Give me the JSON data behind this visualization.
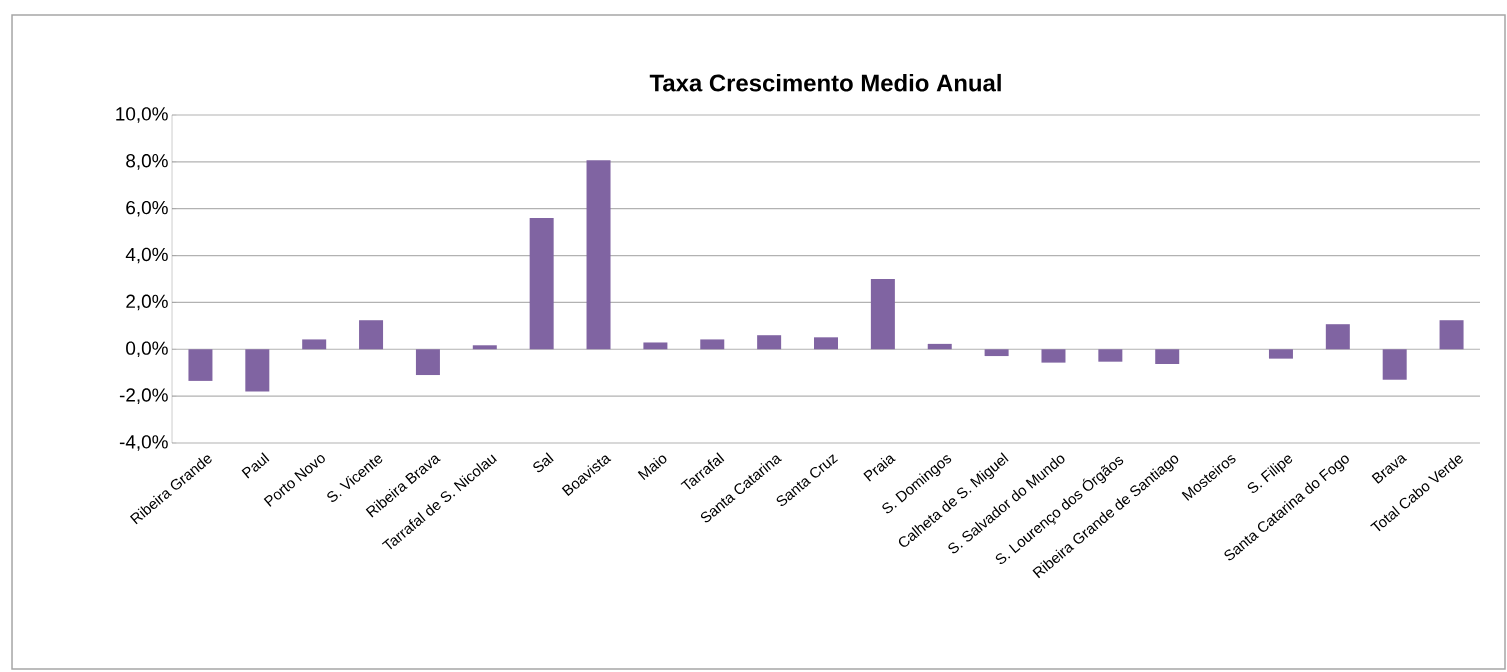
{
  "chart_data": {
    "type": "bar",
    "title": "Taxa Crescimento Medio Anual",
    "categories": [
      "Ribeira Grande",
      "Paul",
      "Porto Novo",
      "S. Vicente",
      "Ribeira Brava",
      "Tarrafal de S. Nicolau",
      "Sal",
      "Boavista",
      "Maio",
      "Tarrafal",
      "Santa Catarina",
      "Santa Cruz",
      "Praia",
      "S. Domingos",
      "Calheta de S. Miguel",
      "S. Salvador  do Mundo",
      "S. Lourenço  dos Órgãos",
      "Ribeira Grande de Santiago",
      "Mosteiros",
      "S. Filipe",
      "Santa Catarina do Fogo",
      "Brava",
      "Total Cabo Verde"
    ],
    "values": [
      -1.35,
      -1.8,
      0.42,
      1.24,
      -1.1,
      0.17,
      5.6,
      8.07,
      0.29,
      0.42,
      0.6,
      0.51,
      3.0,
      0.23,
      -0.29,
      -0.57,
      -0.53,
      -0.63,
      0,
      -0.4,
      1.07,
      -1.3,
      1.24
    ],
    "color": "#8064a2",
    "ylim": [
      -4,
      10
    ],
    "yticks": [
      {
        "value": -4,
        "label": "-4,0%"
      },
      {
        "value": -2,
        "label": "-2,0%"
      },
      {
        "value": 0,
        "label": "0,0%"
      },
      {
        "value": 2,
        "label": "2,0%"
      },
      {
        "value": 4,
        "label": "4,0%"
      },
      {
        "value": 6,
        "label": "6,0%"
      },
      {
        "value": 8,
        "label": "8,0%"
      },
      {
        "value": 10,
        "label": "10,0%"
      }
    ],
    "grid": "y"
  }
}
